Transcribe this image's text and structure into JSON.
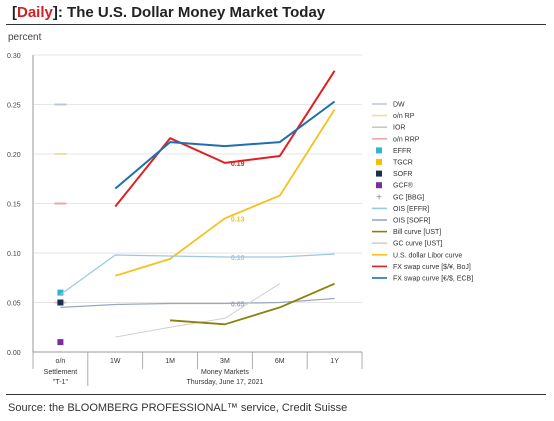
{
  "header": {
    "tag": "Daily",
    "title": "The U.S. Dollar Money Market Today"
  },
  "source": "Source: the BLOOMBERG PROFESSIONAL™ service, Credit Suisse",
  "colors": {
    "DW": "#bcc8d6",
    "on_RP": "#eedfa8",
    "IOR": "#c8c8c8",
    "on_RRP": "#e8a8a8",
    "EFFR": "#2cb5d6",
    "TGCR": "#f2c200",
    "SOFR": "#1f2d4f",
    "GCF": "#7b2f9c",
    "GC_BBG": "#8a8a8a",
    "OIS_EFFR": "#9cc8e0",
    "OIS_SOFR": "#9aa6c2",
    "Bill_UST": "#8b7f0d",
    "GC_UST": "#cfcfcf",
    "Libor": "#f2c21e",
    "FX_JPY": "#e02020",
    "FX_EUR": "#1f6fb0"
  },
  "chart_data": {
    "type": "line",
    "ylabel": "percent",
    "ylim": [
      0,
      0.3
    ],
    "yticks": [
      "0.00",
      "0.05",
      "0.10",
      "0.15",
      "0.20",
      "0.25",
      "0.30"
    ],
    "categories": [
      "o/n",
      "1W",
      "1M",
      "3M",
      "6M",
      "1Y"
    ],
    "cat_sub": [
      "Settlement",
      "\"T-1\""
    ],
    "group_label": "Money Markets",
    "date_label": "Thursday, June 17, 2021",
    "legend_position": "right",
    "legend": [
      {
        "key": "DW",
        "label": "DW",
        "style": "line"
      },
      {
        "key": "on_RP",
        "label": "o/n RP",
        "style": "line"
      },
      {
        "key": "IOR",
        "label": "IOR",
        "style": "line"
      },
      {
        "key": "on_RRP",
        "label": "o/n RRP",
        "style": "line"
      },
      {
        "key": "EFFR",
        "label": "EFFR",
        "style": "square"
      },
      {
        "key": "TGCR",
        "label": "TGCR",
        "style": "square"
      },
      {
        "key": "SOFR",
        "label": "SOFR",
        "style": "square"
      },
      {
        "key": "GCF",
        "label": "GCF®",
        "style": "square"
      },
      {
        "key": "GC_BBG",
        "label": "GC [BBG]",
        "style": "plus"
      },
      {
        "key": "OIS_EFFR",
        "label": "OIS [EFFR]",
        "style": "line"
      },
      {
        "key": "OIS_SOFR",
        "label": "OIS [SOFR]",
        "style": "line"
      },
      {
        "key": "Bill_UST",
        "label": "Bill curve [UST]",
        "style": "line"
      },
      {
        "key": "GC_UST",
        "label": "GC curve [UST]",
        "style": "line"
      },
      {
        "key": "Libor",
        "label": "U.S. dollar Libor curve",
        "style": "line"
      },
      {
        "key": "FX_JPY",
        "label": "FX swap curve [$/¥, BoJ]",
        "style": "line"
      },
      {
        "key": "FX_EUR",
        "label": "FX swap curve [€/$, ECB]",
        "style": "line"
      }
    ],
    "overnight_markers": [
      {
        "key": "DW",
        "value": 0.25,
        "style": "dash"
      },
      {
        "key": "on_RP",
        "value": 0.2,
        "style": "dash"
      },
      {
        "key": "on_RRP",
        "value": 0.15,
        "style": "dash"
      },
      {
        "key": "IOR",
        "value": 0.05,
        "style": "dash"
      },
      {
        "key": "EFFR",
        "value": 0.06,
        "style": "square"
      },
      {
        "key": "TGCR",
        "value": 0.05,
        "style": "square"
      },
      {
        "key": "SOFR",
        "value": 0.05,
        "style": "square"
      },
      {
        "key": "GCF",
        "value": 0.01,
        "style": "square"
      }
    ],
    "series": [
      {
        "key": "FX_JPY",
        "values": [
          null,
          0.147,
          0.216,
          0.191,
          0.198,
          0.284
        ],
        "labels": [
          null,
          null,
          null,
          "0.19",
          null,
          null
        ]
      },
      {
        "key": "FX_EUR",
        "values": [
          null,
          0.165,
          0.212,
          0.208,
          0.212,
          0.253
        ]
      },
      {
        "key": "Libor",
        "values": [
          null,
          0.077,
          0.094,
          0.135,
          0.158,
          0.245
        ],
        "labels": [
          null,
          null,
          null,
          "0.13",
          null,
          null
        ]
      },
      {
        "key": "OIS_EFFR",
        "values": [
          0.058,
          0.098,
          0.097,
          0.096,
          0.096,
          0.099
        ],
        "labels": [
          null,
          null,
          null,
          "0.10",
          null,
          null
        ]
      },
      {
        "key": "OIS_SOFR",
        "values": [
          0.045,
          0.048,
          0.049,
          0.049,
          0.05,
          0.054
        ],
        "labels": [
          null,
          null,
          null,
          "0.05",
          null,
          null
        ]
      },
      {
        "key": "GC_UST",
        "values": [
          null,
          0.015,
          0.025,
          0.034,
          0.069,
          null
        ]
      },
      {
        "key": "Bill_UST",
        "values": [
          null,
          null,
          0.032,
          0.028,
          0.045,
          0.069
        ]
      }
    ]
  }
}
